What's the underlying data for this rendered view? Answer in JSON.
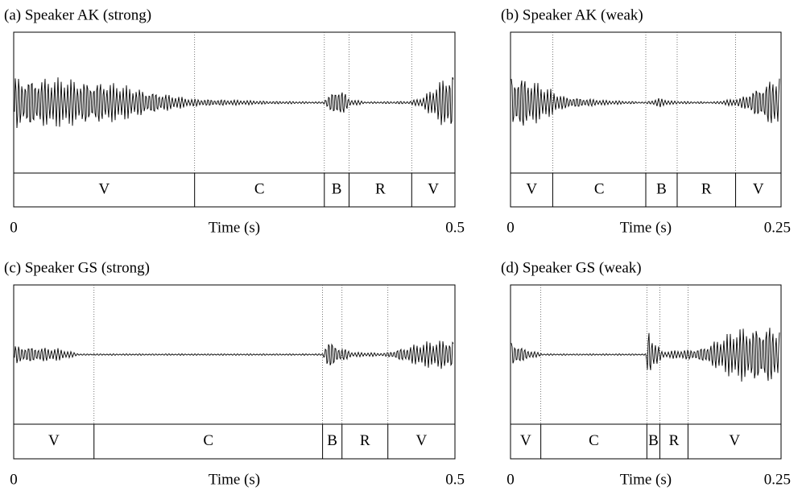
{
  "chart_data": [
    {
      "type": "waveform",
      "title": "(a) Speaker AK (strong)",
      "xlabel": "Time (s)",
      "xlim": [
        0,
        0.5
      ],
      "xticks": [
        0,
        0.5
      ],
      "categories": [
        "V",
        "C",
        "B",
        "R",
        "V"
      ],
      "boundaries": [
        0.205,
        0.352,
        0.38,
        0.451
      ]
    },
    {
      "type": "waveform",
      "title": "(b) Speaker AK (weak)",
      "xlabel": "Time (s)",
      "xlim": [
        0,
        0.25
      ],
      "xticks": [
        0,
        0.25
      ],
      "categories": [
        "V",
        "C",
        "B",
        "R",
        "V"
      ],
      "boundaries": [
        0.039,
        0.125,
        0.154,
        0.208
      ]
    },
    {
      "type": "waveform",
      "title": "(c) Speaker GS (strong)",
      "xlabel": "Time (s)",
      "xlim": [
        0,
        0.5
      ],
      "xticks": [
        0,
        0.5
      ],
      "categories": [
        "V",
        "C",
        "B",
        "R",
        "V"
      ],
      "boundaries": [
        0.091,
        0.35,
        0.372,
        0.424
      ]
    },
    {
      "type": "waveform",
      "title": "(d) Speaker GS (weak)",
      "xlabel": "Time (s)",
      "xlim": [
        0,
        0.25
      ],
      "xticks": [
        0,
        0.25
      ],
      "categories": [
        "V",
        "C",
        "B",
        "R",
        "V"
      ],
      "boundaries": [
        0.028,
        0.126,
        0.138,
        0.164
      ]
    }
  ]
}
